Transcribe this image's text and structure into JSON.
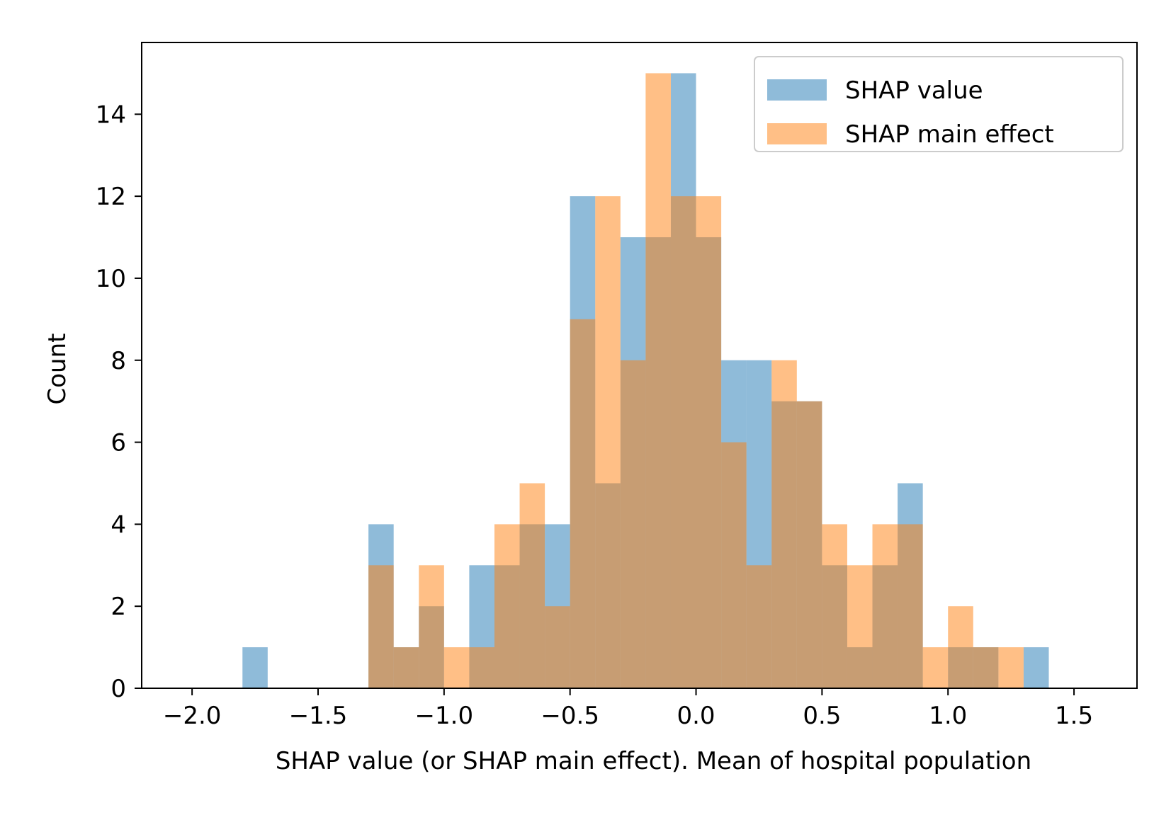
{
  "chart_data": {
    "type": "bar",
    "subtype": "overlapping-histogram",
    "title": "",
    "xlabel": "SHAP value (or SHAP main effect). Mean of hospital population",
    "ylabel": "Count",
    "xlim": [
      -2.2,
      1.75
    ],
    "ylim": [
      0,
      15.75
    ],
    "bin_width": 0.1,
    "grid": false,
    "legend_position": "top-right",
    "x_ticks": [
      {
        "value": -2.0,
        "label": "−2.0"
      },
      {
        "value": -1.5,
        "label": "−1.5"
      },
      {
        "value": -1.0,
        "label": "−1.0"
      },
      {
        "value": -0.5,
        "label": "−0.5"
      },
      {
        "value": 0.0,
        "label": "0.0"
      },
      {
        "value": 0.5,
        "label": "0.5"
      },
      {
        "value": 1.0,
        "label": "1.0"
      },
      {
        "value": 1.5,
        "label": "1.5"
      }
    ],
    "y_ticks": [
      {
        "value": 0,
        "label": "0"
      },
      {
        "value": 2,
        "label": "2"
      },
      {
        "value": 4,
        "label": "4"
      },
      {
        "value": 6,
        "label": "6"
      },
      {
        "value": 8,
        "label": "8"
      },
      {
        "value": 10,
        "label": "10"
      },
      {
        "value": 12,
        "label": "12"
      },
      {
        "value": 14,
        "label": "14"
      }
    ],
    "series": [
      {
        "name": "SHAP value",
        "color": "#1f77b4",
        "opacity": 0.5,
        "bins": [
          {
            "x0": -1.8,
            "x1": -1.7,
            "count": 1
          },
          {
            "x0": -1.3,
            "x1": -1.2,
            "count": 4
          },
          {
            "x0": -1.2,
            "x1": -1.1,
            "count": 1
          },
          {
            "x0": -1.1,
            "x1": -1.0,
            "count": 2
          },
          {
            "x0": -0.9,
            "x1": -0.8,
            "count": 3
          },
          {
            "x0": -0.8,
            "x1": -0.7,
            "count": 3
          },
          {
            "x0": -0.7,
            "x1": -0.6,
            "count": 4
          },
          {
            "x0": -0.6,
            "x1": -0.5,
            "count": 4
          },
          {
            "x0": -0.5,
            "x1": -0.4,
            "count": 12
          },
          {
            "x0": -0.4,
            "x1": -0.3,
            "count": 5
          },
          {
            "x0": -0.3,
            "x1": -0.2,
            "count": 11
          },
          {
            "x0": -0.2,
            "x1": -0.1,
            "count": 11
          },
          {
            "x0": -0.1,
            "x1": 0.0,
            "count": 15
          },
          {
            "x0": 0.0,
            "x1": 0.1,
            "count": 11
          },
          {
            "x0": 0.1,
            "x1": 0.2,
            "count": 8
          },
          {
            "x0": 0.2,
            "x1": 0.3,
            "count": 8
          },
          {
            "x0": 0.3,
            "x1": 0.4,
            "count": 7
          },
          {
            "x0": 0.4,
            "x1": 0.5,
            "count": 7
          },
          {
            "x0": 0.5,
            "x1": 0.6,
            "count": 3
          },
          {
            "x0": 0.6,
            "x1": 0.7,
            "count": 1
          },
          {
            "x0": 0.7,
            "x1": 0.8,
            "count": 3
          },
          {
            "x0": 0.8,
            "x1": 0.9,
            "count": 5
          },
          {
            "x0": 1.0,
            "x1": 1.1,
            "count": 1
          },
          {
            "x0": 1.1,
            "x1": 1.2,
            "count": 1
          },
          {
            "x0": 1.3,
            "x1": 1.4,
            "count": 1
          }
        ]
      },
      {
        "name": "SHAP main effect",
        "color": "#ff7f0e",
        "opacity": 0.5,
        "bins": [
          {
            "x0": -1.3,
            "x1": -1.2,
            "count": 3
          },
          {
            "x0": -1.2,
            "x1": -1.1,
            "count": 1
          },
          {
            "x0": -1.1,
            "x1": -1.0,
            "count": 3
          },
          {
            "x0": -1.0,
            "x1": -0.9,
            "count": 1
          },
          {
            "x0": -0.9,
            "x1": -0.8,
            "count": 1
          },
          {
            "x0": -0.8,
            "x1": -0.7,
            "count": 4
          },
          {
            "x0": -0.7,
            "x1": -0.6,
            "count": 5
          },
          {
            "x0": -0.6,
            "x1": -0.5,
            "count": 2
          },
          {
            "x0": -0.5,
            "x1": -0.4,
            "count": 9
          },
          {
            "x0": -0.4,
            "x1": -0.3,
            "count": 12
          },
          {
            "x0": -0.3,
            "x1": -0.2,
            "count": 8
          },
          {
            "x0": -0.2,
            "x1": -0.1,
            "count": 15
          },
          {
            "x0": -0.1,
            "x1": 0.0,
            "count": 12
          },
          {
            "x0": 0.0,
            "x1": 0.1,
            "count": 12
          },
          {
            "x0": 0.1,
            "x1": 0.2,
            "count": 6
          },
          {
            "x0": 0.2,
            "x1": 0.3,
            "count": 3
          },
          {
            "x0": 0.3,
            "x1": 0.4,
            "count": 8
          },
          {
            "x0": 0.4,
            "x1": 0.5,
            "count": 7
          },
          {
            "x0": 0.5,
            "x1": 0.6,
            "count": 4
          },
          {
            "x0": 0.6,
            "x1": 0.7,
            "count": 3
          },
          {
            "x0": 0.7,
            "x1": 0.8,
            "count": 4
          },
          {
            "x0": 0.8,
            "x1": 0.9,
            "count": 4
          },
          {
            "x0": 0.9,
            "x1": 1.0,
            "count": 1
          },
          {
            "x0": 1.0,
            "x1": 1.1,
            "count": 2
          },
          {
            "x0": 1.1,
            "x1": 1.2,
            "count": 1
          },
          {
            "x0": 1.2,
            "x1": 1.3,
            "count": 1
          }
        ]
      }
    ]
  }
}
